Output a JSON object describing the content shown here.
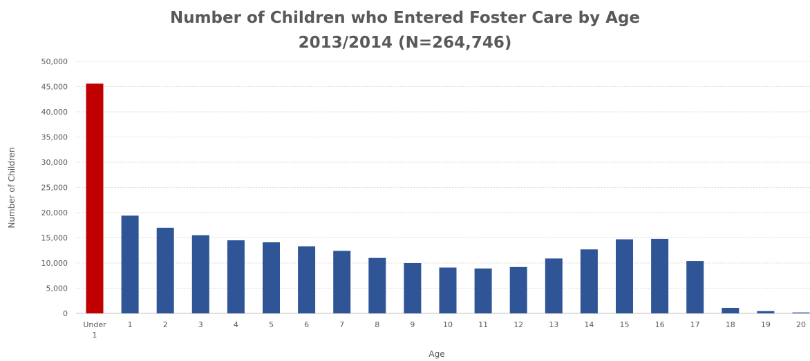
{
  "chart_data": {
    "type": "bar",
    "title": [
      "Number of Children who Entered Foster Care by Age",
      "2013/2014 (N=264,746)"
    ],
    "xlabel": "Age",
    "ylabel": "Number of Children",
    "ylim": [
      0,
      50000
    ],
    "yticks": [
      0,
      5000,
      10000,
      15000,
      20000,
      25000,
      30000,
      35000,
      40000,
      45000,
      50000
    ],
    "ytick_labels": [
      "0",
      "5,000",
      "10,000",
      "15,000",
      "20,000",
      "25,000",
      "30,000",
      "35,000",
      "40,000",
      "45,000",
      "50,000"
    ],
    "categories": [
      [
        "Under",
        "1"
      ],
      [
        "1"
      ],
      [
        "2"
      ],
      [
        "3"
      ],
      [
        "4"
      ],
      [
        "5"
      ],
      [
        "6"
      ],
      [
        "7"
      ],
      [
        "8"
      ],
      [
        "9"
      ],
      [
        "10"
      ],
      [
        "11"
      ],
      [
        "12"
      ],
      [
        "13"
      ],
      [
        "14"
      ],
      [
        "15"
      ],
      [
        "16"
      ],
      [
        "17"
      ],
      [
        "18"
      ],
      [
        "19"
      ],
      [
        "20"
      ]
    ],
    "values": [
      45600,
      19400,
      17000,
      15500,
      14500,
      14100,
      13300,
      12400,
      11000,
      10000,
      9100,
      8900,
      9200,
      10900,
      12700,
      14700,
      14800,
      10400,
      1100,
      450,
      180
    ],
    "colors": {
      "highlight": "#C00000",
      "default": "#2F5597",
      "grid": "#D9D9D9",
      "axis": "#BFBFBF",
      "text": "#595959"
    },
    "highlight_index": 0,
    "grid": true,
    "legend": "none"
  }
}
